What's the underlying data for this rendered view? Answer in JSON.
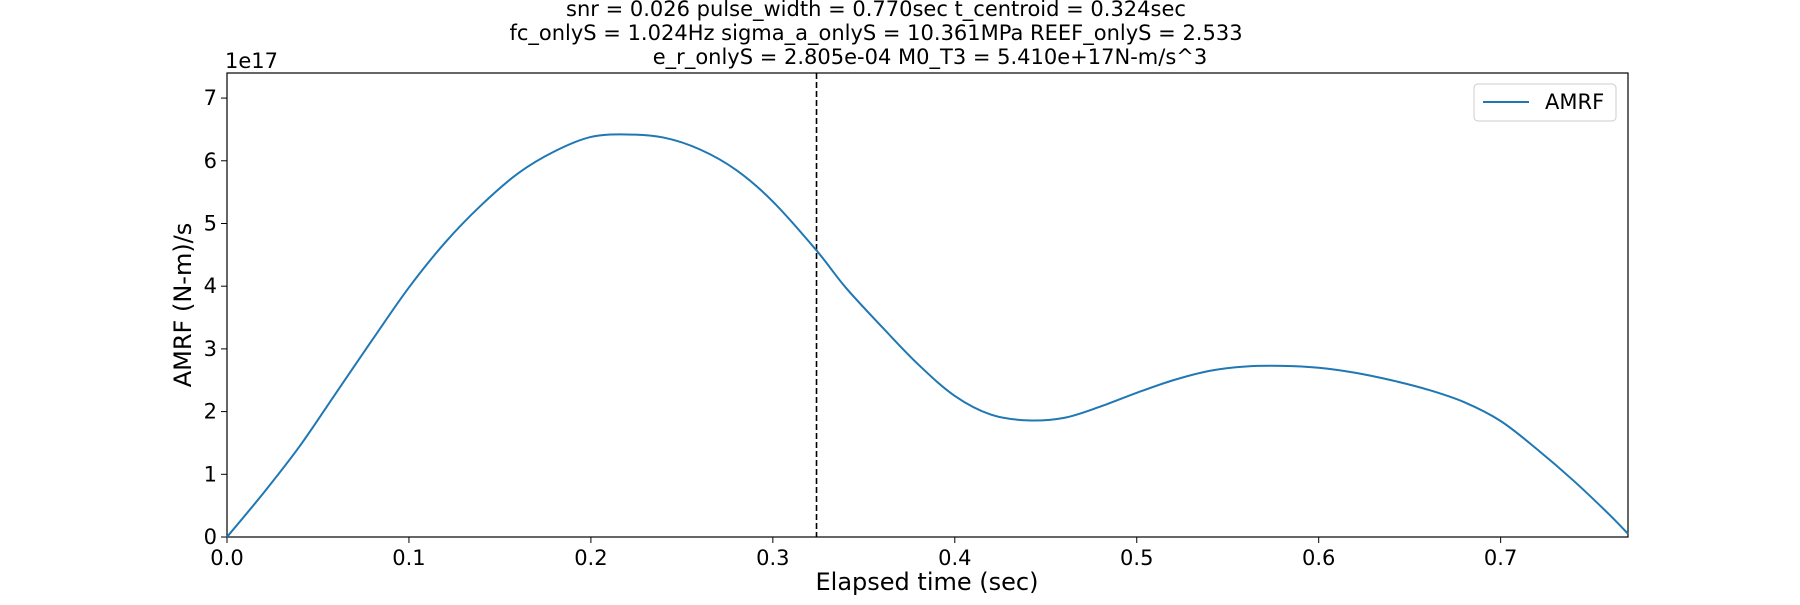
{
  "chart_data": {
    "type": "line",
    "title_lines": [
      "snr = 0.026 pulse_width = 0.770sec t_centroid = 0.324sec",
      "fc_onlyS = 1.024Hz sigma_a_onlyS = 10.361MPa REEF_onlyS = 2.533",
      "e_r_onlyS = 2.805e-04 M0_T3 = 5.410e+17N-m/s^3"
    ],
    "xlabel": "Elapsed time (sec)",
    "ylabel": "AMRF (N-m)/s",
    "y_offset_label": "1e17",
    "xlim": [
      0.0,
      0.77
    ],
    "ylim": [
      0,
      7.4
    ],
    "y_scale_exponent": 17,
    "x_ticks": [
      0.0,
      0.1,
      0.2,
      0.3,
      0.4,
      0.5,
      0.6,
      0.7
    ],
    "x_tick_labels": [
      "0.0",
      "0.1",
      "0.2",
      "0.3",
      "0.4",
      "0.5",
      "0.6",
      "0.7"
    ],
    "y_ticks": [
      0,
      1,
      2,
      3,
      4,
      5,
      6,
      7
    ],
    "y_tick_labels": [
      "0",
      "1",
      "2",
      "3",
      "4",
      "5",
      "6",
      "7"
    ],
    "grid": false,
    "legend_position": "top-right",
    "vline_x": 0.324,
    "series": [
      {
        "name": "AMRF",
        "color": "#1f77b4",
        "x": [
          0.0,
          0.02,
          0.04,
          0.06,
          0.08,
          0.1,
          0.12,
          0.14,
          0.16,
          0.18,
          0.2,
          0.22,
          0.24,
          0.26,
          0.28,
          0.3,
          0.324,
          0.34,
          0.36,
          0.38,
          0.4,
          0.42,
          0.44,
          0.46,
          0.48,
          0.5,
          0.52,
          0.54,
          0.56,
          0.58,
          0.6,
          0.62,
          0.64,
          0.66,
          0.68,
          0.7,
          0.72,
          0.74,
          0.76,
          0.77
        ],
        "y": [
          0.0,
          0.7,
          1.45,
          2.3,
          3.15,
          3.98,
          4.7,
          5.3,
          5.8,
          6.15,
          6.38,
          6.42,
          6.37,
          6.18,
          5.85,
          5.35,
          4.57,
          3.98,
          3.35,
          2.75,
          2.25,
          1.95,
          1.86,
          1.9,
          2.08,
          2.3,
          2.5,
          2.65,
          2.72,
          2.73,
          2.7,
          2.62,
          2.5,
          2.35,
          2.15,
          1.85,
          1.4,
          0.9,
          0.35,
          0.05
        ]
      }
    ]
  }
}
